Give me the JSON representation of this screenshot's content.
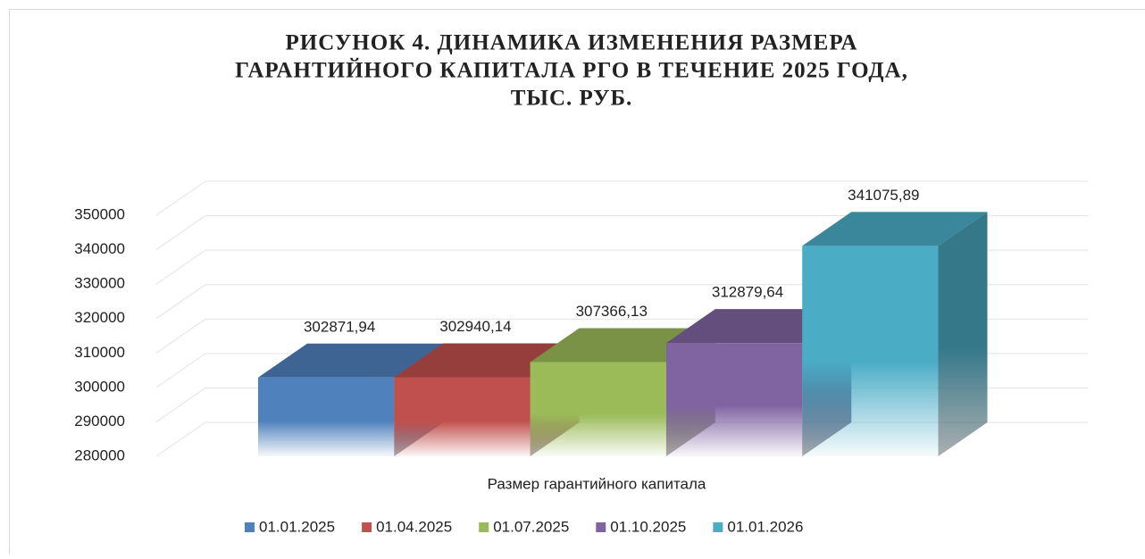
{
  "chart_data": {
    "type": "bar3d",
    "title": [
      "РИСУНОК 4. ДИНАМИКА ИЗМЕНЕНИЯ РАЗМЕРА",
      "ГАРАНТИЙНОГО КАПИТАЛА РГО В ТЕЧЕНИЕ 2025 ГОДА,",
      "ТЫС. РУБ."
    ],
    "categories": [
      "Размер гарантийного капитала"
    ],
    "series": [
      {
        "name": "01.01.2025",
        "color": "#4f81bd",
        "values": [
          302871.94
        ],
        "value_labels": [
          "302871,94"
        ]
      },
      {
        "name": "01.04.2025",
        "color": "#c0504d",
        "values": [
          302940.14
        ],
        "value_labels": [
          "302940,14"
        ]
      },
      {
        "name": "01.07.2025",
        "color": "#9bbb59",
        "values": [
          307366.13
        ],
        "value_labels": [
          "307366,13"
        ]
      },
      {
        "name": "01.10.2025",
        "color": "#8064a2",
        "values": [
          312879.64
        ],
        "value_labels": [
          "312879,64"
        ]
      },
      {
        "name": "01.01.2026",
        "color": "#4bacc6",
        "values": [
          341075.89
        ],
        "value_labels": [
          "341075,89"
        ]
      }
    ],
    "ylim": [
      280000,
      350000
    ],
    "yticks": [
      280000,
      290000,
      300000,
      310000,
      320000,
      330000,
      340000,
      350000
    ],
    "grid": true,
    "legend": "bottom"
  }
}
